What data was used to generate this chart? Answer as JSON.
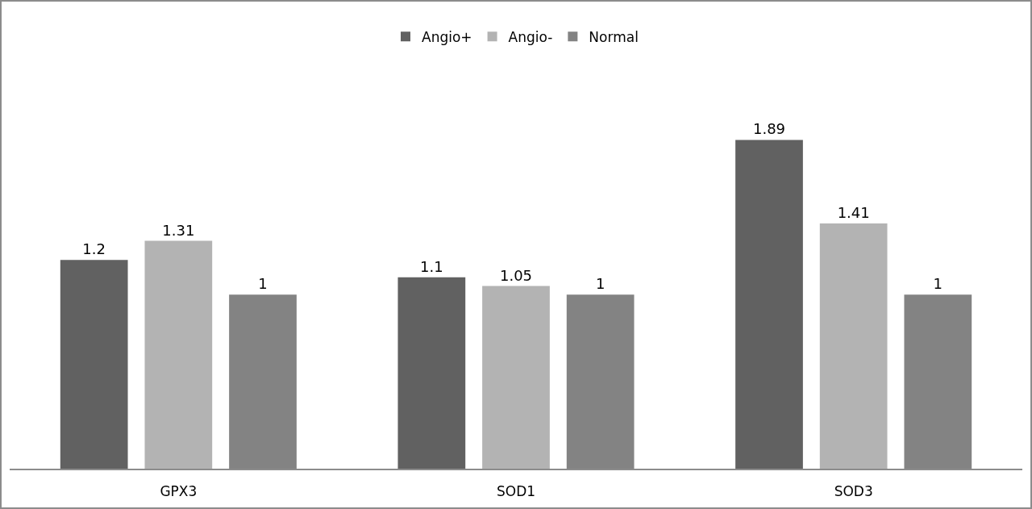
{
  "chart_data": {
    "type": "bar",
    "categories": [
      "GPX3",
      "SOD1",
      "SOD3"
    ],
    "series": [
      {
        "name": "Angio+",
        "color": "#616161",
        "values": [
          1.2,
          1.1,
          1.89
        ]
      },
      {
        "name": "Angio-",
        "color": "#b3b3b3",
        "values": [
          1.31,
          1.05,
          1.41
        ]
      },
      {
        "name": "Normal",
        "color": "#838383",
        "values": [
          1,
          1,
          1
        ]
      }
    ],
    "data_labels": true,
    "legend": "top"
  }
}
